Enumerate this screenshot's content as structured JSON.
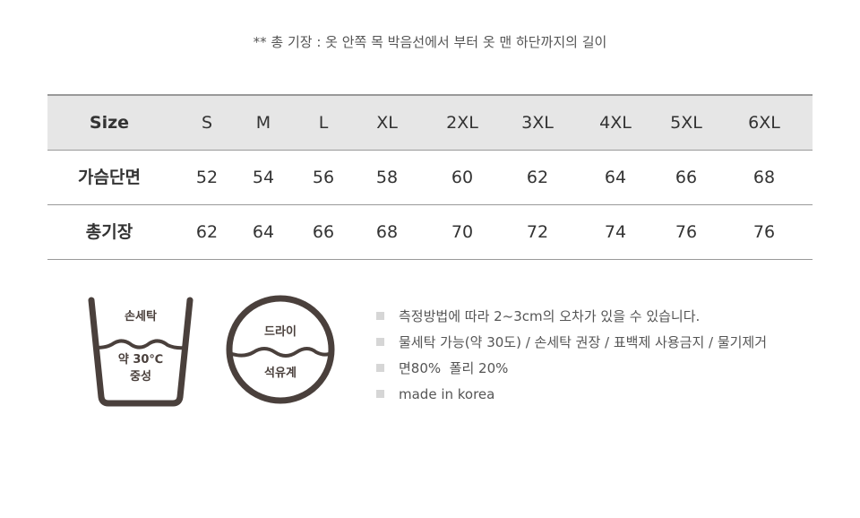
{
  "note": "** 총 기장 : 옷 안쪽 목 박음선에서 부터 옷 맨 하단까지의 길이",
  "size_table": {
    "header": {
      "label": "Size",
      "values": [
        "S",
        "M",
        "L",
        "XL",
        "2XL",
        "3XL",
        "4XL",
        "5XL",
        "6XL"
      ]
    },
    "rows": [
      {
        "label": "가슴단면",
        "values": [
          "52",
          "54",
          "56",
          "58",
          "60",
          "62",
          "64",
          "66",
          "68"
        ]
      },
      {
        "label": "총기장",
        "values": [
          "62",
          "64",
          "66",
          "68",
          "70",
          "72",
          "74",
          "76",
          "76"
        ]
      }
    ]
  },
  "care_icons": {
    "wash": {
      "icon": "hand-wash-tub-icon",
      "top": "손세탁",
      "temp": "약 30℃",
      "detergent": "중성"
    },
    "dry_clean": {
      "icon": "dry-clean-circle-icon",
      "top": "드라이",
      "bottom": "석유계"
    },
    "icon_color": "#4a403c"
  },
  "info": [
    "측정방법에 따라 2~3cm의 오차가 있을 수 있습니다.",
    "물세탁 가능(약 30도) / 손세탁 권장 / 표백제 사용금지 / 물기제거",
    "면80%  폴리 20%",
    "made in korea"
  ]
}
